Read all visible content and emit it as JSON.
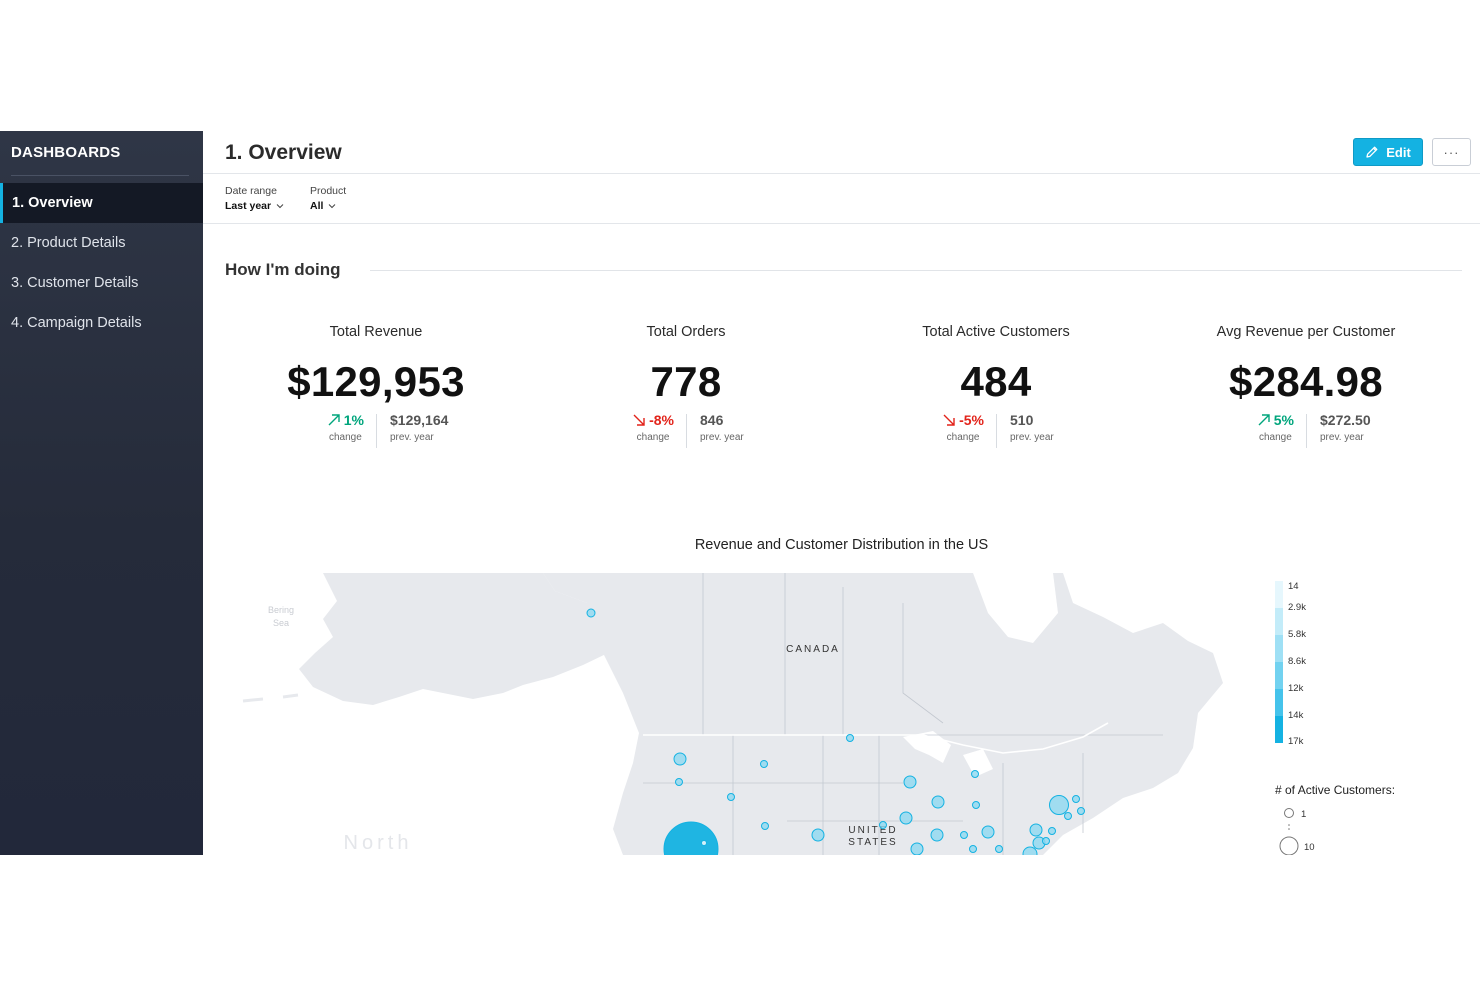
{
  "sidebar": {
    "title": "DASHBOARDS",
    "items": [
      {
        "label": "1. Overview",
        "active": true
      },
      {
        "label": "2. Product Details",
        "active": false
      },
      {
        "label": "3. Customer Details",
        "active": false
      },
      {
        "label": "4. Campaign Details",
        "active": false
      }
    ]
  },
  "header": {
    "title": "1. Overview",
    "edit_label": "Edit",
    "more_label": "···"
  },
  "filters": [
    {
      "label": "Date range",
      "value": "Last year"
    },
    {
      "label": "Product",
      "value": "All"
    }
  ],
  "section": {
    "title": "How I'm doing"
  },
  "kpis": [
    {
      "title": "Total Revenue",
      "value": "$129,953",
      "change": "1%",
      "direction": "up",
      "change_caption": "change",
      "prev": "$129,164",
      "prev_caption": "prev. year"
    },
    {
      "title": "Total Orders",
      "value": "778",
      "change": "-8%",
      "direction": "down",
      "change_caption": "change",
      "prev": "846",
      "prev_caption": "prev. year"
    },
    {
      "title": "Total Active Customers",
      "value": "484",
      "change": "-5%",
      "direction": "down",
      "change_caption": "change",
      "prev": "510",
      "prev_caption": "prev. year"
    },
    {
      "title": "Avg Revenue per Customer",
      "value": "$284.98",
      "change": "5%",
      "direction": "up",
      "change_caption": "change",
      "prev": "$272.50",
      "prev_caption": "prev. year"
    }
  ],
  "map": {
    "title": "Revenue and Customer Distribution in the US",
    "labels": {
      "canada": "CANADA",
      "us_line1": "UNITED",
      "us_line2": "STATES",
      "bering1": "Bering",
      "bering2": "Sea",
      "north": "North"
    },
    "color_legend": [
      "14",
      "2.9k",
      "5.8k",
      "8.6k",
      "12k",
      "14k",
      "17k"
    ],
    "size_legend_title": "# of Active Customers:",
    "size_legend_min": "1",
    "size_legend_max": "10",
    "colors": {
      "marker_fill": "#8fd8f0",
      "marker_stroke": "#14b2e2",
      "land": "#e7e9ed",
      "border": "#b9bec6"
    }
  }
}
